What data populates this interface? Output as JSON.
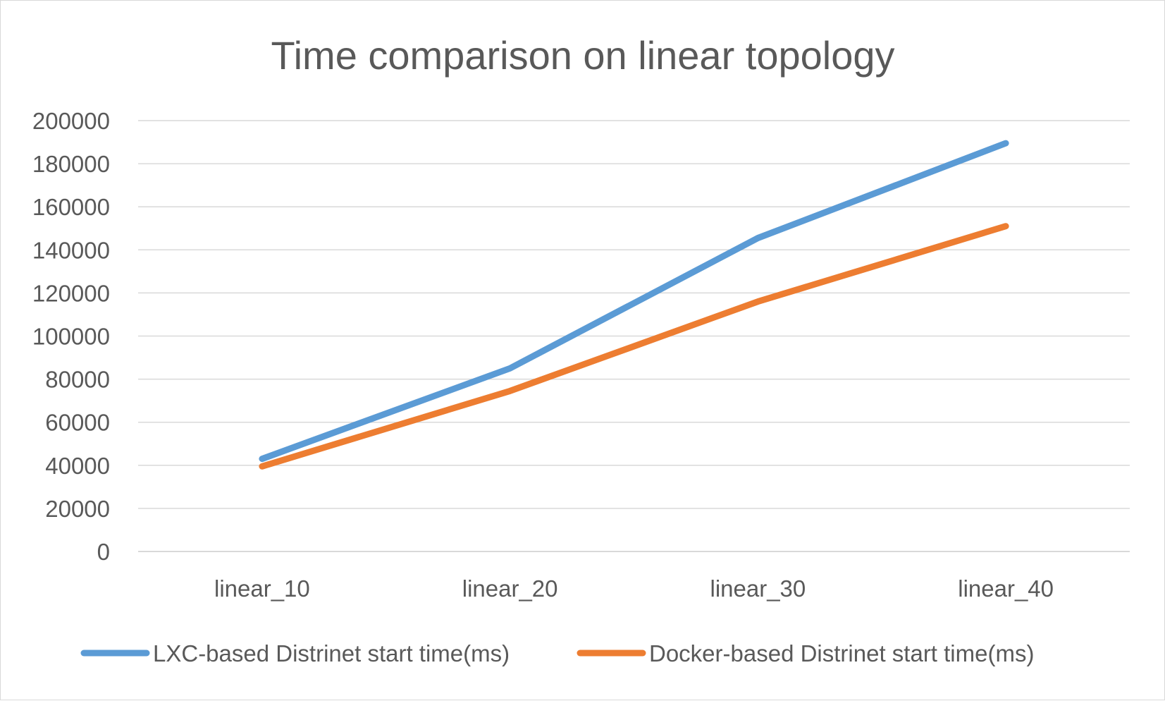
{
  "chart_data": {
    "type": "line",
    "title": "Time comparison on linear topology",
    "xlabel": "",
    "ylabel": "",
    "categories": [
      "linear_10",
      "linear_20",
      "linear_30",
      "linear_40"
    ],
    "yticks": [
      "0",
      "20000",
      "40000",
      "60000",
      "80000",
      "100000",
      "120000",
      "140000",
      "160000",
      "180000",
      "200000"
    ],
    "ylim": [
      0,
      200000
    ],
    "grid": true,
    "legend_position": "bottom",
    "series": [
      {
        "name": "LXC-based Distrinet start time(ms)",
        "color": "#5B9BD5",
        "values": [
          43000,
          85000,
          145500,
          189500
        ]
      },
      {
        "name": "Docker-based Distrinet start time(ms)",
        "color": "#ED7D31",
        "values": [
          39500,
          74500,
          116000,
          151000
        ]
      }
    ]
  }
}
